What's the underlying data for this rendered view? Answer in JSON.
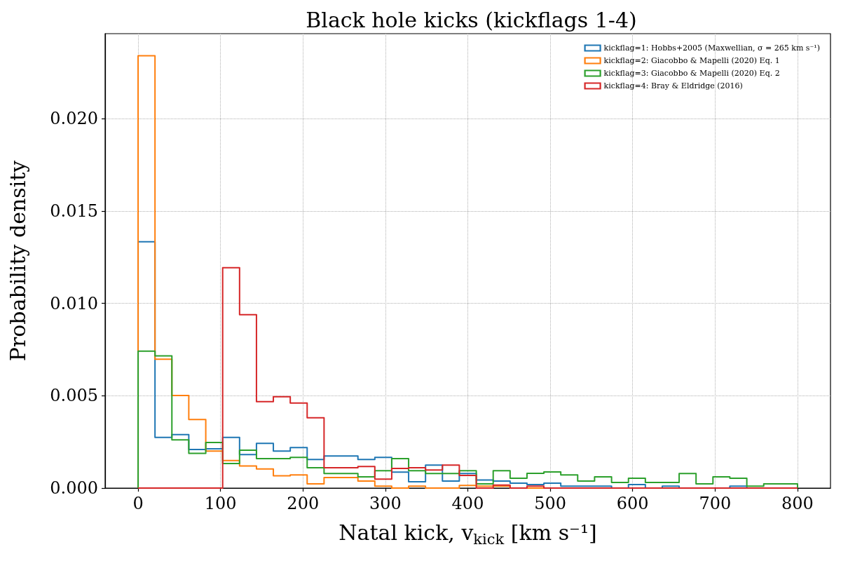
{
  "chart_data": {
    "type": "histogram",
    "title": "Black hole kicks (kickflags 1-4)",
    "xlabel": "Natal kick, v$_{kick}$ [km s⁻¹]",
    "ylabel": "Probability density",
    "bins": [
      0,
      20.5,
      41.0,
      61.5,
      82.1,
      102.6,
      123.1,
      143.6,
      164.1,
      184.6,
      205.1,
      225.6,
      246.2,
      266.7,
      287.2,
      307.7,
      328.2,
      348.7,
      369.2,
      389.7,
      410.3,
      430.8,
      451.3,
      471.8,
      492.3,
      512.8,
      533.3,
      553.8,
      574.4,
      594.9,
      615.4,
      635.9,
      656.4,
      676.9,
      697.4,
      717.9,
      738.5,
      759.0,
      779.5,
      800
    ],
    "series": [
      {
        "name": "kickflag=1: Hobbs+2005 (Maxwellian, σ = 265 km s⁻¹)",
        "color": "#1f77b4",
        "values": [
          0.01333,
          0.00274,
          0.00289,
          0.00209,
          0.00213,
          0.00274,
          0.00181,
          0.00242,
          0.002,
          0.00219,
          0.00155,
          0.00174,
          0.00174,
          0.00155,
          0.00166,
          0.00086,
          0.00034,
          0.00124,
          0.00038,
          0.00079,
          0.00044,
          0.00038,
          0.00027,
          0.00019,
          0.00027,
          0.0001,
          0.0001,
          0.0001,
          0,
          0.00019,
          0,
          0.0001,
          0,
          0,
          0,
          0.0001,
          0,
          0,
          0
        ]
      },
      {
        "name": "kickflag=2: Giacobbo & Mapelli (2020) Eq. 1",
        "color": "#ff7f0e",
        "values": [
          0.0234,
          0.00698,
          0.00501,
          0.00371,
          0.002,
          0.00149,
          0.0012,
          0.00103,
          0.00066,
          0.00071,
          0.00023,
          0.00057,
          0.00057,
          0.00038,
          0.0001,
          0,
          0.0001,
          0,
          0,
          0.00014,
          0.0001,
          0.0001,
          0,
          0,
          0,
          0,
          0,
          0,
          0,
          0,
          0,
          0,
          0,
          0,
          0,
          0,
          0,
          0,
          0
        ]
      },
      {
        "name": "kickflag=3: Giacobbo & Mapelli (2020) Eq. 2",
        "color": "#2ca02c",
        "values": [
          0.00741,
          0.00716,
          0.00261,
          0.00188,
          0.00247,
          0.00133,
          0.00205,
          0.00159,
          0.00159,
          0.00166,
          0.0011,
          0.00079,
          0.00079,
          0.00061,
          0.00094,
          0.00159,
          0.00094,
          0.00079,
          0.00079,
          0.00094,
          0.00023,
          0.00094,
          0.00053,
          0.0008,
          0.00087,
          0.00071,
          0.00038,
          0.00061,
          0.0003,
          0.00053,
          0.0003,
          0.0003,
          0.00079,
          0.00023,
          0.00061,
          0.00053,
          0.0001,
          0.00023,
          0.00023
        ]
      },
      {
        "name": "kickflag=4: Bray & Eldridge (2016)",
        "color": "#d62728",
        "values": [
          0,
          0,
          0,
          0,
          0,
          0.01193,
          0.00939,
          0.00468,
          0.00494,
          0.0046,
          0.00381,
          0.0011,
          0.0011,
          0.00117,
          0.00048,
          0.00106,
          0.0011,
          0.00098,
          0.00124,
          0.00068,
          0,
          0.00016,
          0,
          0.0001,
          0,
          0,
          0,
          0,
          0,
          0,
          0,
          0,
          0,
          0,
          0,
          0,
          0,
          0,
          0
        ]
      }
    ],
    "xlim": [
      -40,
      840
    ],
    "xticks": [
      0,
      100,
      200,
      300,
      400,
      500,
      600,
      700,
      800
    ],
    "ylim": [
      0,
      0.0246
    ],
    "yticks": [
      {
        "value": 0,
        "label": "0.000"
      },
      {
        "value": 0.005,
        "label": "0.005"
      },
      {
        "value": 0.01,
        "label": "0.010"
      },
      {
        "value": 0.015,
        "label": "0.015"
      },
      {
        "value": 0.02,
        "label": "0.020"
      }
    ],
    "grid": true,
    "legend": "top right"
  }
}
